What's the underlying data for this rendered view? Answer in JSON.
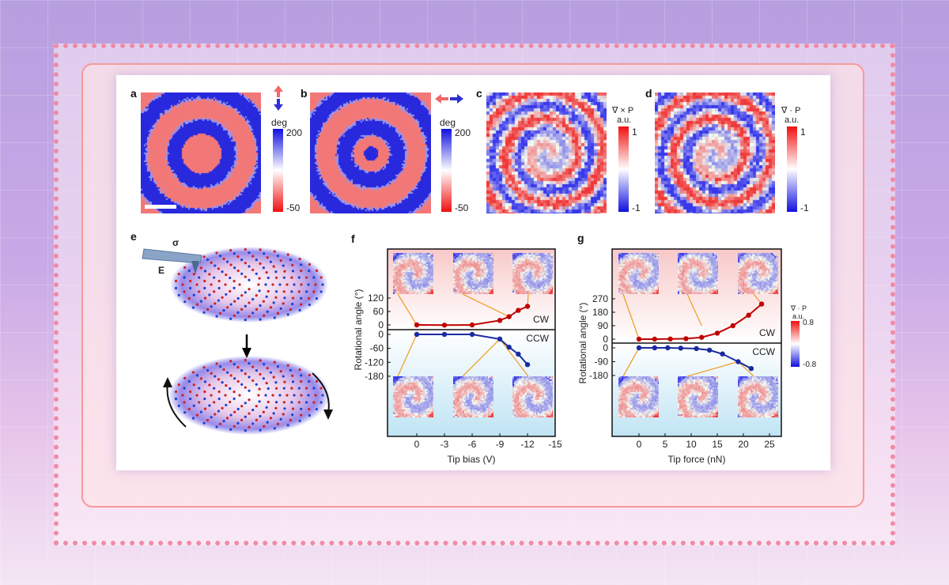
{
  "panels": {
    "a": {
      "label": "a",
      "unit": "deg",
      "max": "200",
      "min": "-50"
    },
    "b": {
      "label": "b",
      "unit": "deg",
      "max": "200",
      "min": "-50"
    },
    "c": {
      "label": "c",
      "quantity": "∇ × P",
      "unit": "a.u.",
      "max": "1",
      "min": "-1"
    },
    "d": {
      "label": "d",
      "quantity": "∇ · P",
      "unit": "a.u.",
      "max": "1",
      "min": "-1"
    },
    "e": {
      "label": "e",
      "sigma": "σ",
      "field": "E"
    },
    "f": {
      "label": "f"
    },
    "g": {
      "label": "g",
      "colorbar": {
        "quantity": "∇ · P",
        "unit": "a.u.",
        "max": "0.8",
        "min": "-0.8"
      }
    }
  },
  "colors": {
    "cw": "#c00000",
    "ccw": "#1a2aa0",
    "arrow": "#f0a030",
    "cw_bg": "#f8c8c8",
    "ccw_bg": "#c0e4f4"
  },
  "chart_data": [
    {
      "type": "line",
      "panel": "f",
      "xlabel": "Tip bias (V)",
      "ylabel": "Rotational angle (°)",
      "xlim": [
        2,
        -15
      ],
      "xticks": [
        "0",
        "-3",
        "-6",
        "-9",
        "-12",
        "-15"
      ],
      "series": [
        {
          "name": "CW",
          "x": [
            0,
            -3,
            -6,
            -9,
            -10,
            -11,
            -12
          ],
          "y": [
            0,
            -1,
            0,
            20,
            37,
            65,
            83
          ],
          "yticks": [
            "120",
            "60",
            "0"
          ]
        },
        {
          "name": "CCW",
          "x": [
            0,
            -3,
            -6,
            -9,
            -10,
            -11,
            -12
          ],
          "y": [
            0,
            0,
            0,
            -20,
            -55,
            -85,
            -130
          ],
          "yticks": [
            "0",
            "-60",
            "-120",
            "-180"
          ]
        }
      ]
    },
    {
      "type": "line",
      "panel": "g",
      "xlabel": "Tip force (nN)",
      "ylabel": "Rotational angle (°)",
      "xlim": [
        -4,
        27
      ],
      "xticks": [
        "0",
        "5",
        "10",
        "15",
        "20",
        "25"
      ],
      "series": [
        {
          "name": "CW",
          "x": [
            0,
            3,
            6,
            9,
            12,
            15,
            18,
            21,
            23.5
          ],
          "y": [
            0,
            0,
            1,
            3,
            12,
            40,
            90,
            160,
            235
          ],
          "yticks": [
            "270",
            "180",
            "90",
            "0"
          ]
        },
        {
          "name": "CCW",
          "x": [
            0,
            3,
            5.5,
            8,
            11,
            13.5,
            16,
            19,
            21.5
          ],
          "y": [
            0,
            0,
            0,
            -2,
            -5,
            -15,
            -40,
            -90,
            -135
          ],
          "yticks": [
            "0",
            "-90",
            "-180"
          ]
        }
      ]
    }
  ]
}
